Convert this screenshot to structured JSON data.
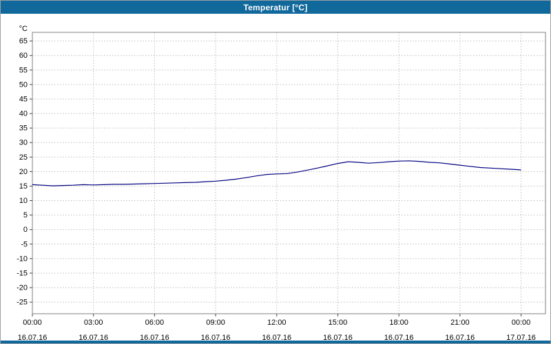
{
  "window": {
    "title": "Temperatur [°C]",
    "titlebar_color": "#11689b",
    "accent_color": "#11689b"
  },
  "chart_data": {
    "type": "line",
    "title": "Temperatur [°C]",
    "xlabel": "",
    "ylabel": "°C",
    "ylim": [
      -29,
      68
    ],
    "xlim_hours": [
      0,
      25.2
    ],
    "grid": true,
    "legend": false,
    "line_color": "#000080",
    "grid_color": "#bcbcbc",
    "plot_border_color": "#7f7f7f",
    "tick_color": "#404040",
    "label_color": "#000000",
    "y_ticks": [
      65,
      60,
      55,
      50,
      45,
      40,
      35,
      30,
      25,
      20,
      15,
      10,
      5,
      0,
      -5,
      -10,
      -15,
      -20,
      -25
    ],
    "x_ticks": [
      {
        "hour": 0,
        "time": "00:00",
        "date": "16.07.16"
      },
      {
        "hour": 3,
        "time": "03:00",
        "date": "16.07.16"
      },
      {
        "hour": 6,
        "time": "06:00",
        "date": "16.07.16"
      },
      {
        "hour": 9,
        "time": "09:00",
        "date": "16.07.16"
      },
      {
        "hour": 12,
        "time": "12:00",
        "date": "16.07.16"
      },
      {
        "hour": 15,
        "time": "15:00",
        "date": "16.07.16"
      },
      {
        "hour": 18,
        "time": "18:00",
        "date": "16.07.16"
      },
      {
        "hour": 21,
        "time": "21:00",
        "date": "16.07.16"
      },
      {
        "hour": 24,
        "time": "00:00",
        "date": "17.07.16"
      }
    ],
    "series": [
      {
        "name": "Temperatur",
        "x_hours": [
          0,
          0.5,
          1,
          1.5,
          2,
          2.5,
          3,
          3.5,
          4,
          4.5,
          5,
          5.5,
          6,
          6.5,
          7,
          7.5,
          8,
          8.5,
          9,
          9.5,
          10,
          10.5,
          11,
          11.5,
          12,
          12.5,
          13,
          13.5,
          14,
          14.5,
          15,
          15.5,
          16,
          16.5,
          17,
          17.5,
          18,
          18.5,
          19,
          19.5,
          20,
          20.5,
          21,
          21.5,
          22,
          22.5,
          23,
          23.5,
          24
        ],
        "values": [
          15.5,
          15.3,
          15.1,
          15.2,
          15.3,
          15.5,
          15.4,
          15.5,
          15.6,
          15.6,
          15.7,
          15.8,
          15.9,
          16.0,
          16.1,
          16.2,
          16.3,
          16.5,
          16.7,
          17.0,
          17.4,
          17.9,
          18.5,
          19.0,
          19.2,
          19.3,
          19.8,
          20.5,
          21.2,
          22.0,
          22.8,
          23.4,
          23.2,
          22.9,
          23.1,
          23.4,
          23.6,
          23.7,
          23.5,
          23.2,
          23.0,
          22.6,
          22.2,
          21.8,
          21.4,
          21.2,
          21.0,
          20.8,
          20.6
        ]
      }
    ]
  }
}
